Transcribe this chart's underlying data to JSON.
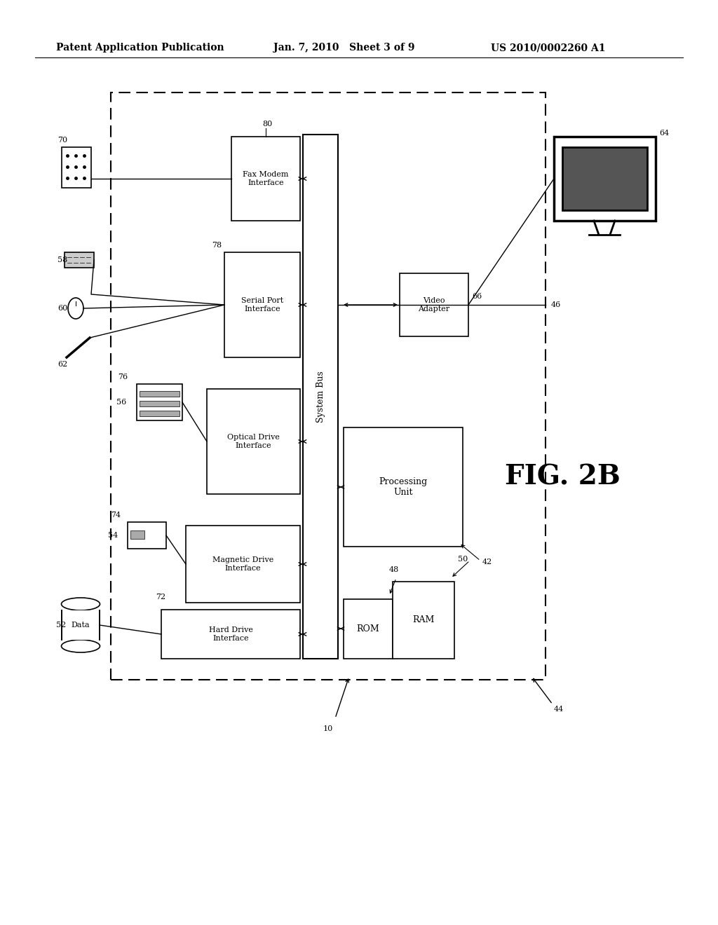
{
  "bg_color": "#ffffff",
  "header_left": "Patent Application Publication",
  "header_mid": "Jan. 7, 2010   Sheet 3 of 9",
  "header_right": "US 2010/0002260 A1",
  "fig_label": "FIG. 2B"
}
